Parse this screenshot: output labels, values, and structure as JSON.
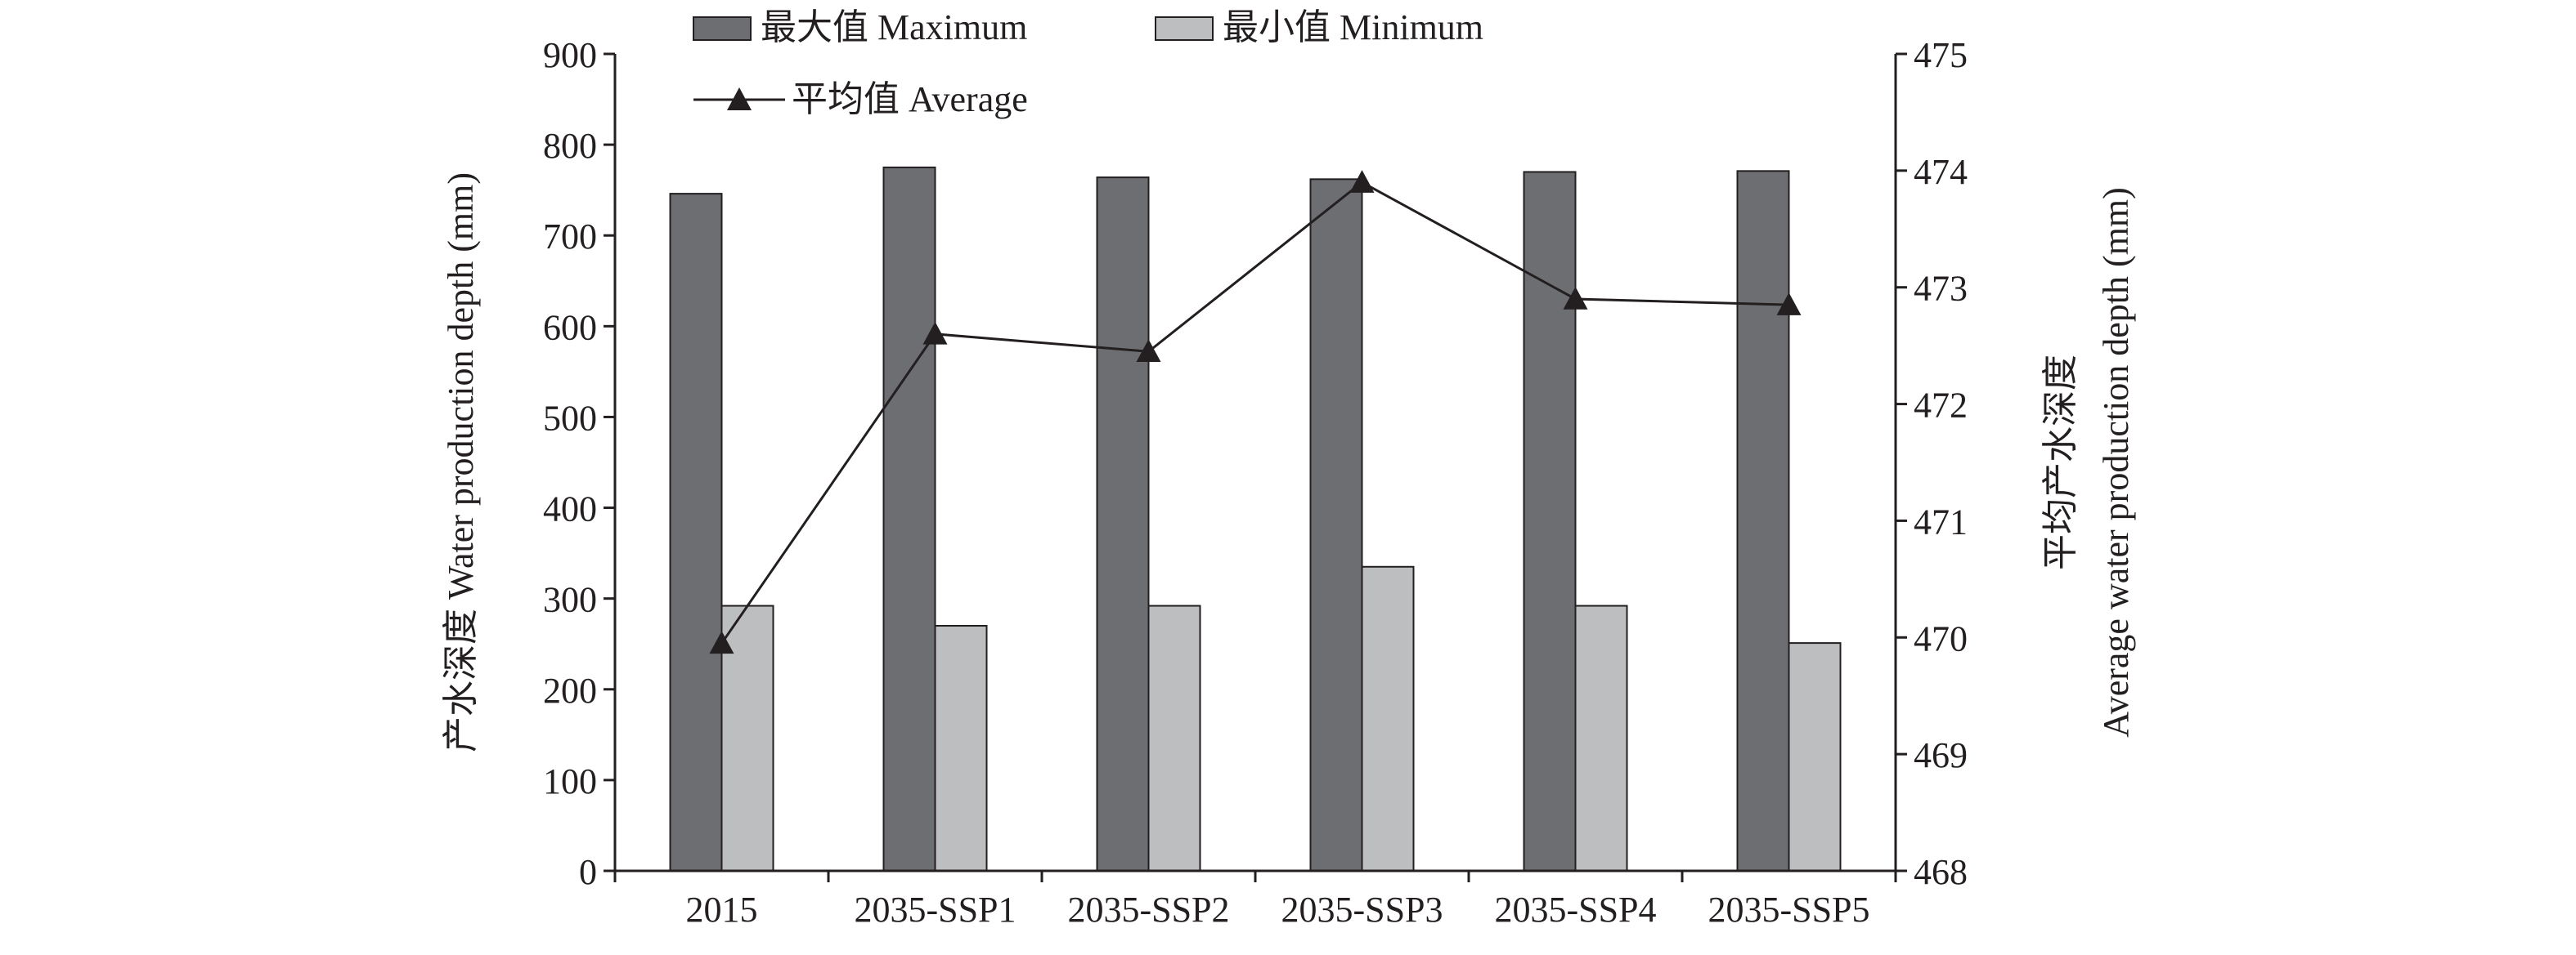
{
  "chart_data": {
    "type": "bar",
    "categories": [
      "2015",
      "2035-SSP1",
      "2035-SSP2",
      "2035-SSP3",
      "2035-SSP4",
      "2035-SSP5"
    ],
    "series": [
      {
        "name": "最大值 Maximum",
        "axis": "left",
        "kind": "bar",
        "color": "#6d6e71",
        "values": [
          746,
          775,
          764,
          762,
          770,
          771
        ]
      },
      {
        "name": "最小值 Minimum",
        "axis": "left",
        "kind": "bar",
        "color": "#bcbec0",
        "values": [
          292,
          270,
          292,
          335,
          292,
          251
        ]
      },
      {
        "name": "平均值 Average",
        "axis": "right",
        "kind": "line",
        "marker": "triangle",
        "color": "#231f20",
        "values": [
          469.95,
          472.6,
          472.45,
          473.9,
          472.9,
          472.85
        ]
      }
    ],
    "ylabel": "产水深度 Water production depth (mm)",
    "y2label_line1": "平均产水深度",
    "y2label_line2": "Average water production depth (mm)",
    "ylim": [
      0,
      900
    ],
    "yticks": [
      "0",
      "100",
      "200",
      "300",
      "400",
      "500",
      "600",
      "700",
      "800",
      "900"
    ],
    "y2lim": [
      468,
      475
    ],
    "y2ticks": [
      "468",
      "469",
      "470",
      "471",
      "472",
      "473",
      "474",
      "475"
    ],
    "legend": {
      "placement": "top",
      "items": [
        "最大值 Maximum",
        "最小值 Minimum",
        "平均值 Average"
      ]
    },
    "grid": false
  }
}
